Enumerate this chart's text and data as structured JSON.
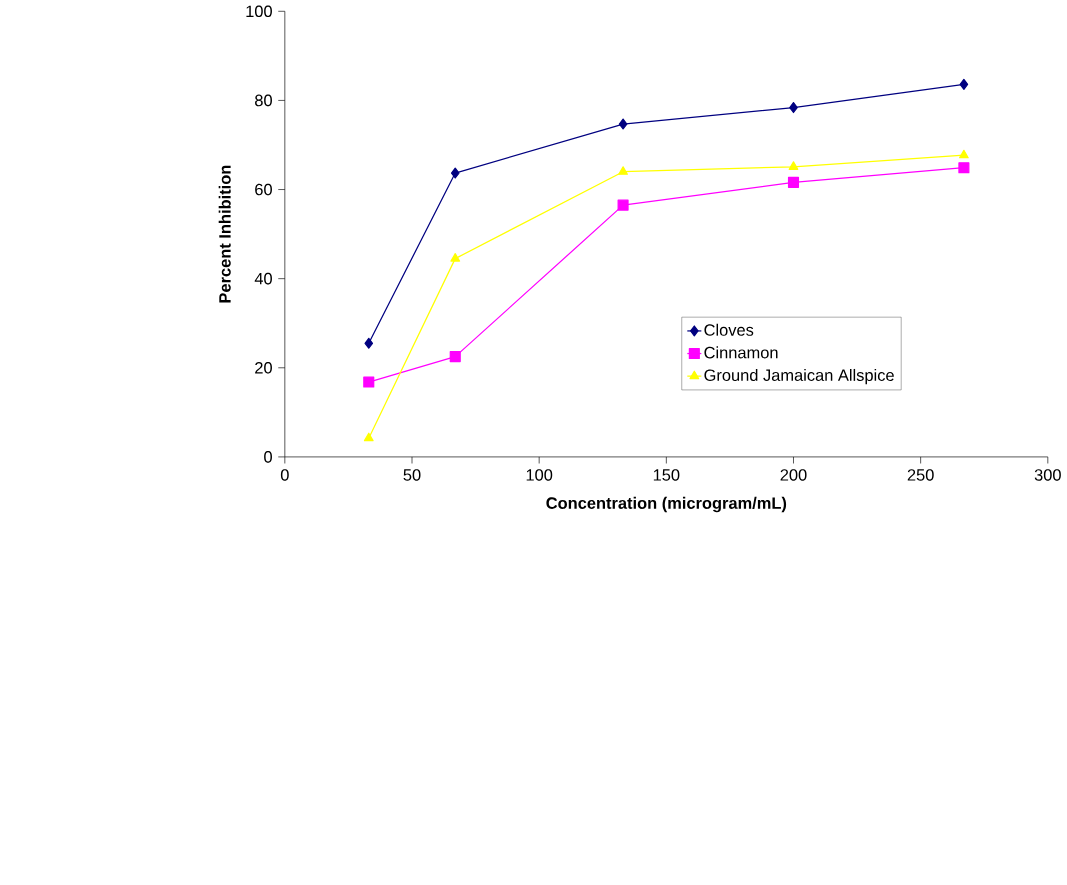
{
  "chart_data": {
    "type": "line",
    "xlabel": "Concentration (microgram/mL)",
    "ylabel": "Percent Inhibition",
    "x": [
      33,
      67,
      133,
      200,
      267
    ],
    "series": [
      {
        "name": "Cloves",
        "color": "#000080",
        "marker": "diamond",
        "values": [
          25.5,
          63.7,
          74.7,
          78.4,
          83.6
        ]
      },
      {
        "name": "Cinnamon",
        "color": "#ff00ff",
        "marker": "square",
        "values": [
          16.8,
          22.5,
          56.5,
          61.6,
          64.9
        ]
      },
      {
        "name": "Ground Jamaican Allspice",
        "color": "#ffff00",
        "marker": "triangle",
        "values": [
          4.2,
          44.5,
          64.0,
          65.1,
          67.7
        ]
      }
    ],
    "xlim": [
      0,
      300
    ],
    "xticks": [
      0,
      50,
      100,
      150,
      200,
      250,
      300
    ],
    "ylim": [
      0,
      100
    ],
    "yticks": [
      0,
      20,
      40,
      60,
      80,
      100
    ],
    "grid": false,
    "legend": "right",
    "line_style": "solid"
  }
}
